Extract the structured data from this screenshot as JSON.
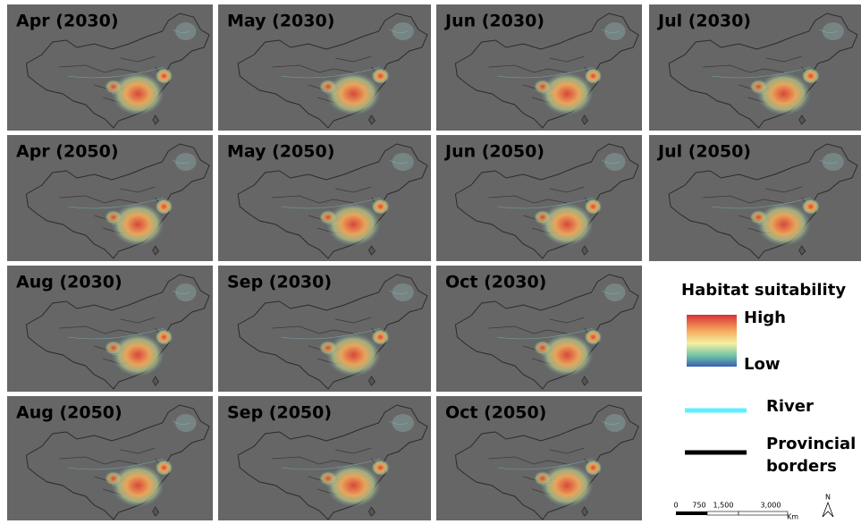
{
  "panels": [
    [
      "Apr  (2030)",
      "May  (2030)",
      "Jun  (2030)",
      "Jul  (2030)"
    ],
    [
      "Apr  (2050)",
      "May  (2050)",
      "Jun  (2050)",
      "Jul  (2050)"
    ],
    [
      "Aug  (2030)",
      "Sep  (2030)",
      "Oct  (2030)"
    ],
    [
      "Aug  (2050)",
      "Sep  (2050)",
      "Oct  (2050)"
    ]
  ],
  "legend": {
    "title": "Habitat suitability",
    "high": "High",
    "low": "Low",
    "river": "River",
    "borders_line1": "Provincial",
    "borders_line2": "borders"
  },
  "scale": {
    "labels": [
      "0",
      "750",
      "1,500",
      "3,000"
    ],
    "unit": "Km",
    "north": "N"
  }
}
